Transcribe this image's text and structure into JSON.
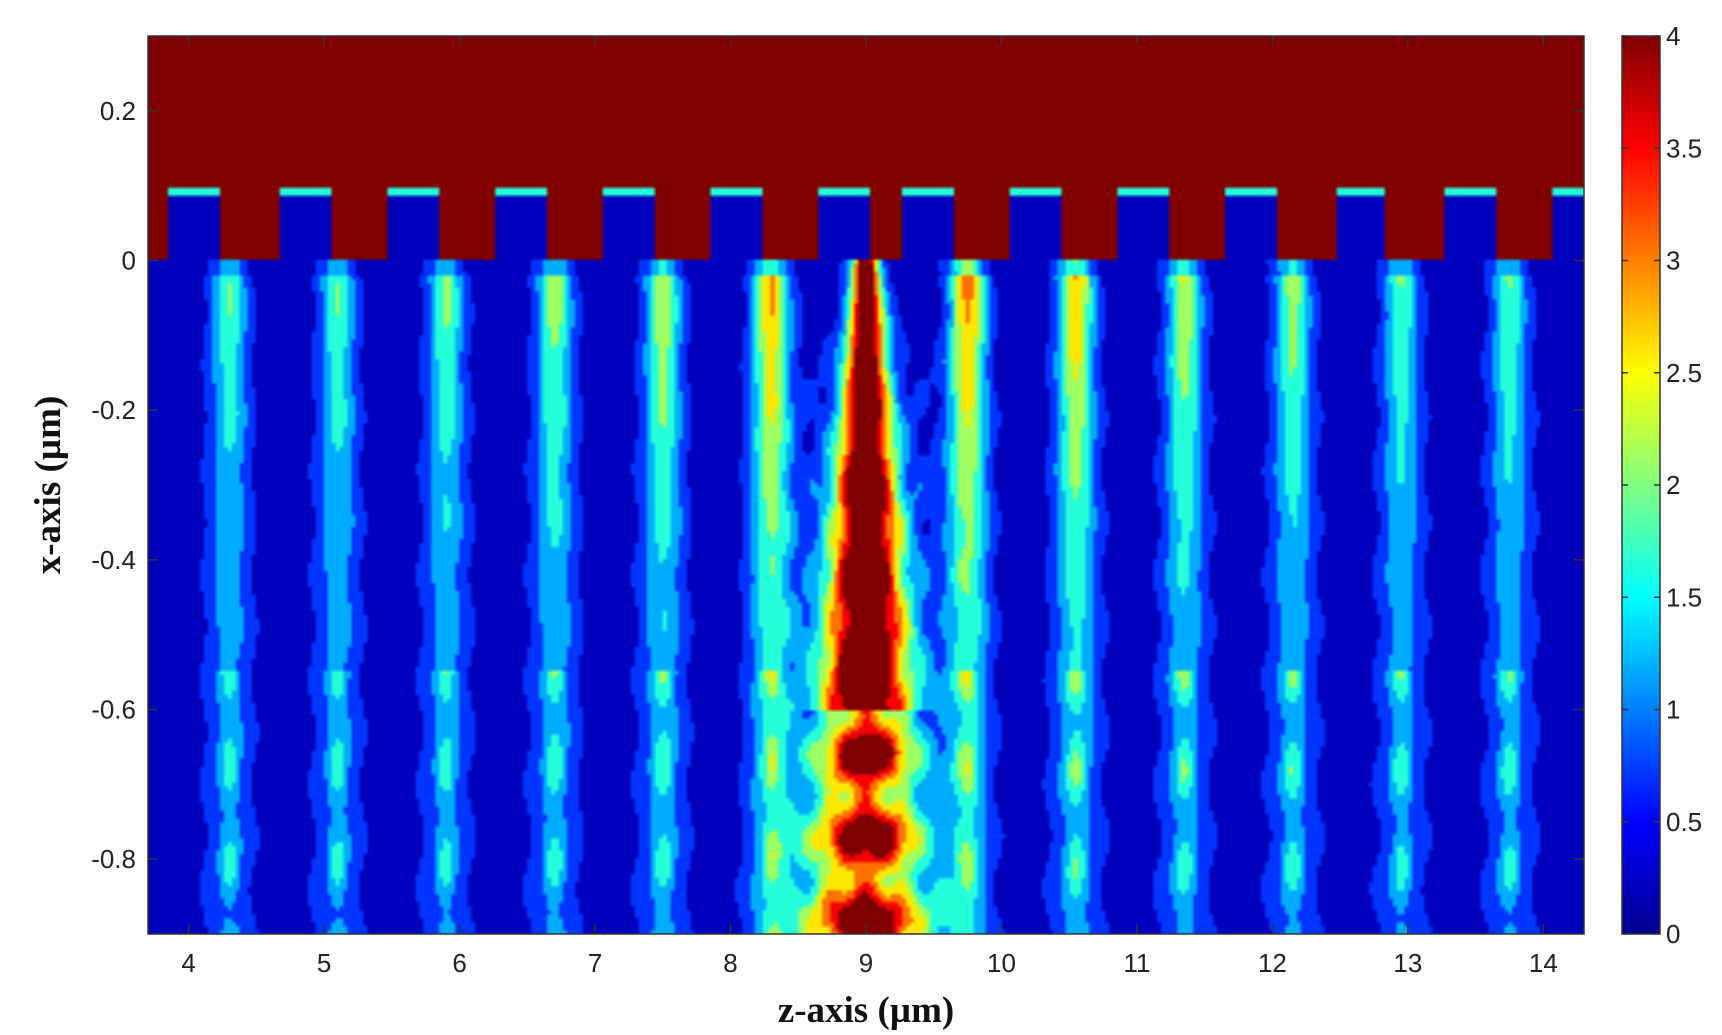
{
  "chart_data": {
    "type": "heatmap",
    "title": "",
    "xlabel": "z-axis (µm)",
    "ylabel": "x-axis (µm)",
    "xlim": [
      3.7,
      14.3
    ],
    "ylim": [
      -0.9,
      0.3
    ],
    "x_ticks": [
      "4",
      "5",
      "6",
      "7",
      "8",
      "9",
      "10",
      "11",
      "12",
      "13",
      "14"
    ],
    "x_tick_values": [
      4,
      5,
      6,
      7,
      8,
      9,
      10,
      11,
      12,
      13,
      14
    ],
    "y_ticks": [
      "0.2",
      "0",
      "-0.2",
      "-0.4",
      "-0.6",
      "-0.8"
    ],
    "y_tick_values": [
      0.2,
      0,
      -0.2,
      -0.4,
      -0.6,
      -0.8
    ],
    "colorbar": {
      "range": [
        0,
        4
      ],
      "ticks": [
        "0",
        "0.5",
        "1",
        "1.5",
        "2",
        "2.5",
        "3",
        "3.5",
        "4"
      ],
      "tick_values": [
        0,
        0.5,
        1,
        1.5,
        2,
        2.5,
        3,
        3.5,
        4
      ],
      "colormap": "jet"
    },
    "regions": {
      "upper_region_value": 4,
      "upper_region_x_range": [
        0.1,
        0.3
      ],
      "grating_teeth_x_range": [
        0.0,
        0.1
      ],
      "grating_teeth_centers_z": [
        4.05,
        4.85,
        5.65,
        6.45,
        7.25,
        8.05,
        8.85,
        9.45,
        10.25,
        11.05,
        11.85,
        12.65,
        13.45,
        14.25
      ],
      "grating_tooth_width_z": 0.38,
      "grating_tooth_value": 0.25
    },
    "features": {
      "central_beam": {
        "z": 9.0,
        "x_from": 0.0,
        "x_to": -0.56,
        "peak_value": 4
      },
      "side_lobes_z": [
        4.3,
        5.1,
        5.9,
        6.7,
        7.5,
        8.3,
        9.75,
        10.55,
        11.35,
        12.15,
        12.95,
        13.75
      ],
      "side_lobe_peak_values": [
        1.5,
        1.5,
        1.6,
        1.8,
        2.0,
        2.6,
        2.8,
        2.5,
        2.0,
        1.8,
        1.5,
        1.5
      ]
    }
  }
}
